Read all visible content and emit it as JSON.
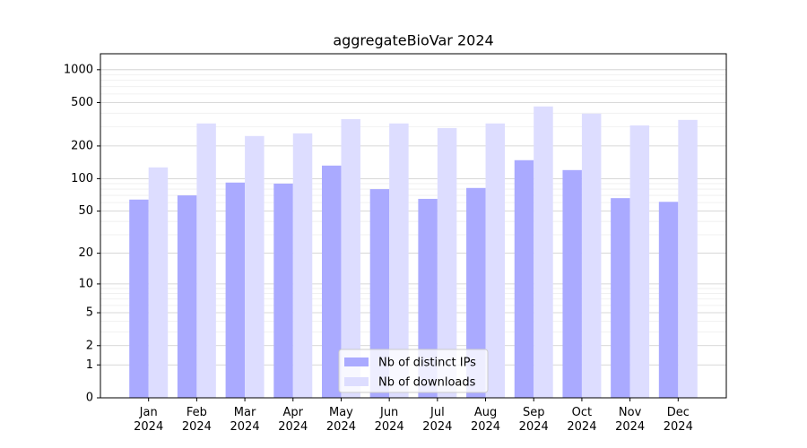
{
  "chart_data": {
    "type": "bar",
    "title": "aggregateBioVar 2024",
    "categories": [
      "Jan\n2024",
      "Feb\n2024",
      "Mar\n2024",
      "Apr\n2024",
      "May\n2024",
      "Jun\n2024",
      "Jul\n2024",
      "Aug\n2024",
      "Sep\n2024",
      "Oct\n2024",
      "Nov\n2024",
      "Dec\n2024"
    ],
    "series": [
      {
        "name": "Nb of distinct IPs",
        "color": "#aaaaff",
        "values": [
          64,
          70,
          92,
          90,
          132,
          80,
          65,
          82,
          148,
          120,
          66,
          61
        ]
      },
      {
        "name": "Nb of downloads",
        "color": "#ddddff",
        "values": [
          127,
          322,
          247,
          261,
          353,
          322,
          292,
          322,
          461,
          396,
          309,
          347
        ]
      }
    ],
    "yscale": "log1p",
    "ylim": [
      0,
      1400
    ],
    "yticks": [
      0,
      1,
      2,
      5,
      10,
      20,
      50,
      100,
      200,
      500,
      1000
    ],
    "minor_yticks": [
      3,
      4,
      6,
      7,
      8,
      9,
      30,
      40,
      60,
      70,
      80,
      90,
      300,
      400,
      600,
      700,
      800,
      900
    ],
    "grid": true,
    "legend": "lower center"
  }
}
